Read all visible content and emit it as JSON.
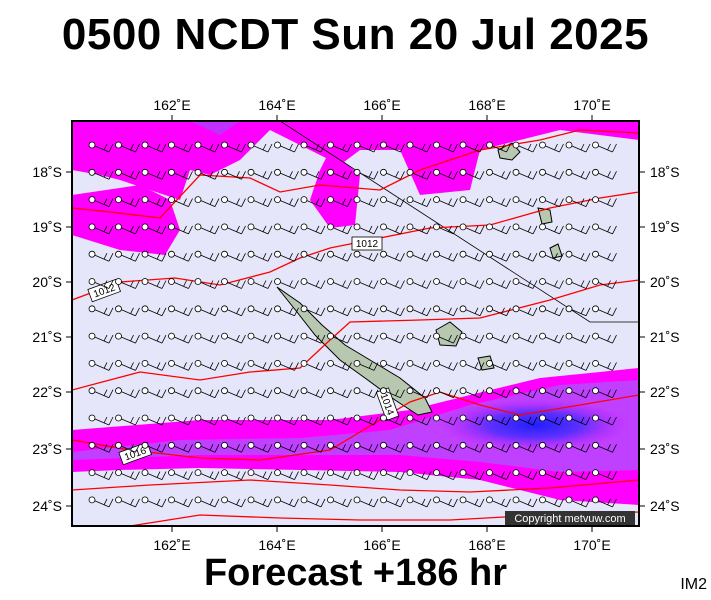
{
  "title": "0500 NCDT Sun 20 Jul 2025",
  "footer": "Forecast +186 hr",
  "tag": "IM2",
  "copyright": "Copyright metvuw.com",
  "axes": {
    "lon_labels": [
      "162˚E",
      "164˚E",
      "166˚E",
      "168˚E",
      "170˚E"
    ],
    "lat_labels": [
      "18˚S",
      "19˚S",
      "20˚S",
      "21˚S",
      "22˚S",
      "23˚S",
      "24˚S"
    ]
  },
  "isobars": [
    {
      "label": "1012"
    },
    {
      "label": "1012"
    },
    {
      "label": "1014"
    },
    {
      "label": "1016"
    }
  ],
  "colors": {
    "background_sea": "#e6e6fa",
    "rain_light": "#ff00ff",
    "rain_medium": "#c020ff",
    "rain_heavy": "#3020ff",
    "isobar": "#ff0000",
    "land": "#b8c8b0"
  }
}
